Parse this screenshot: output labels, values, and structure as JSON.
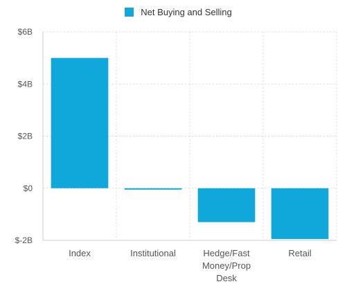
{
  "chart_data": {
    "type": "bar",
    "categories": [
      "Index",
      "Institutional",
      "Hedge/Fast Money/Prop Desk",
      "Retail"
    ],
    "category_label_lines": [
      [
        "Index"
      ],
      [
        "Institutional"
      ],
      [
        "Hedge/Fast",
        "Money/Prop",
        "Desk"
      ],
      [
        "Retail"
      ]
    ],
    "series": [
      {
        "name": "Net Buying and Selling",
        "values": [
          5.0,
          -0.05,
          -1.3,
          -1.95
        ]
      }
    ],
    "unit": "$B",
    "ylim": [
      -2,
      6
    ],
    "yticks": [
      -2,
      0,
      2,
      4,
      6
    ],
    "ytick_labels": [
      "$-2B",
      "$0",
      "$2B",
      "$4B",
      "$6B"
    ],
    "grid": true,
    "legend_position": "top-center",
    "colors": {
      "bar": "#10a8db",
      "grid": "#d7d7d7",
      "text": "#555555"
    }
  }
}
